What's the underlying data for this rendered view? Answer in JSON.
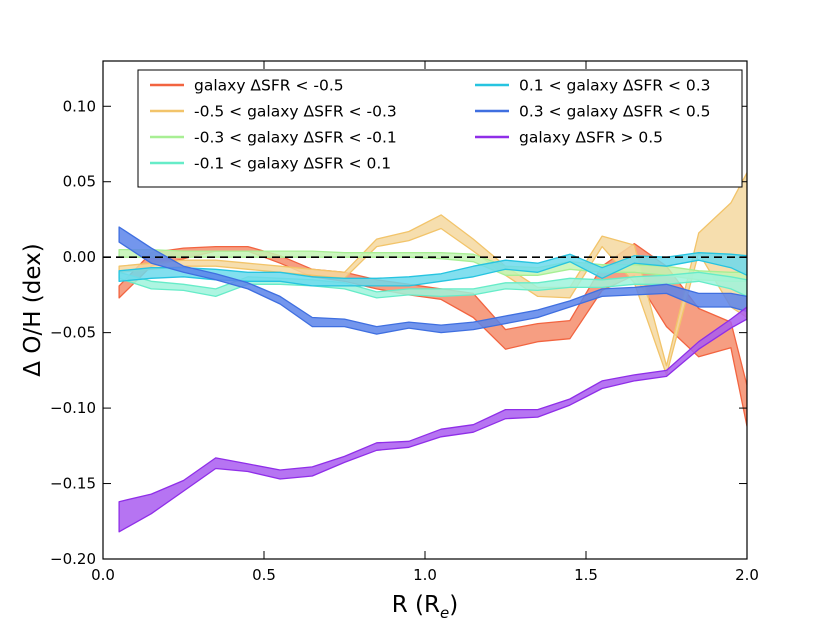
{
  "chart_data": {
    "type": "area",
    "title": "",
    "xlabel_main": "R (R",
    "xlabel_sub": "e",
    "xlabel_close": ")",
    "ylabel": "Δ O/H (dex)",
    "xlim": [
      0.0,
      2.0
    ],
    "ylim": [
      -0.2,
      0.13
    ],
    "xticks": [
      0.0,
      0.5,
      1.0,
      1.5,
      2.0
    ],
    "xtick_labels": [
      "0.0",
      "0.5",
      "1.0",
      "1.5",
      "2.0"
    ],
    "yticks": [
      -0.2,
      -0.15,
      -0.1,
      -0.05,
      0.0,
      0.05,
      0.1
    ],
    "ytick_labels": [
      "−0.20",
      "−0.15",
      "−0.10",
      "−0.05",
      "0.00",
      "0.05",
      "0.10"
    ],
    "reference_line": 0.0,
    "legend_position": "top",
    "x": [
      0.05,
      0.15,
      0.25,
      0.35,
      0.45,
      0.55,
      0.65,
      0.75,
      0.85,
      0.95,
      1.05,
      1.15,
      1.25,
      1.35,
      1.45,
      1.55,
      1.65,
      1.75,
      1.85,
      1.95,
      2.0
    ],
    "series": [
      {
        "name": "galaxy ΔSFR < -0.5",
        "color": "#f26440",
        "fill": "#f58d6c",
        "lower": [
          -0.027,
          -0.006,
          -0.001,
          0.004,
          0.004,
          -0.004,
          -0.013,
          -0.016,
          -0.021,
          -0.025,
          -0.028,
          -0.04,
          -0.061,
          -0.056,
          -0.054,
          -0.022,
          -0.012,
          -0.046,
          -0.066,
          -0.06,
          -0.112
        ],
        "upper": [
          -0.019,
          0.003,
          0.006,
          0.007,
          0.007,
          0.001,
          -0.008,
          -0.01,
          -0.015,
          -0.018,
          -0.021,
          -0.024,
          -0.048,
          -0.044,
          -0.042,
          -0.006,
          0.009,
          -0.006,
          -0.034,
          -0.043,
          -0.085
        ]
      },
      {
        "name": "-0.5 < galaxy ΔSFR < -0.3",
        "color": "#f2c46a",
        "fill": "#f5d8a0",
        "lower": [
          -0.01,
          -0.008,
          -0.006,
          -0.006,
          -0.008,
          -0.01,
          -0.012,
          -0.014,
          0.007,
          0.011,
          0.019,
          0.004,
          -0.012,
          -0.026,
          -0.027,
          0.007,
          -0.017,
          -0.078,
          0.003,
          -0.033,
          -0.04
        ],
        "upper": [
          -0.006,
          -0.004,
          -0.002,
          -0.002,
          -0.004,
          -0.006,
          -0.008,
          -0.01,
          0.012,
          0.017,
          0.028,
          0.012,
          -0.006,
          -0.02,
          -0.02,
          0.014,
          0.008,
          -0.072,
          0.016,
          0.036,
          0.056
        ]
      },
      {
        "name": "-0.3 < galaxy ΔSFR < -0.1",
        "color": "#a8ef94",
        "fill": "#c3f4b4",
        "lower": [
          0.0,
          0.0,
          0.0,
          0.0,
          0.0,
          0.0,
          0.0,
          0.0,
          0.0,
          0.0,
          -0.001,
          -0.003,
          -0.012,
          -0.012,
          -0.008,
          -0.01,
          -0.01,
          -0.012,
          -0.015,
          -0.016,
          -0.016
        ],
        "upper": [
          0.005,
          0.005,
          0.004,
          0.004,
          0.004,
          0.004,
          0.004,
          0.003,
          0.003,
          0.003,
          0.003,
          0.002,
          -0.006,
          -0.007,
          -0.003,
          -0.005,
          -0.005,
          -0.006,
          -0.009,
          -0.01,
          -0.01
        ]
      },
      {
        "name": "-0.1 < galaxy ΔSFR < 0.1",
        "color": "#66ecc8",
        "fill": "#9ff3dc",
        "lower": [
          -0.014,
          -0.021,
          -0.022,
          -0.026,
          -0.018,
          -0.018,
          -0.019,
          -0.021,
          -0.027,
          -0.025,
          -0.026,
          -0.025,
          -0.021,
          -0.022,
          -0.02,
          -0.02,
          -0.018,
          -0.018,
          -0.016,
          -0.021,
          -0.026
        ],
        "upper": [
          -0.01,
          -0.016,
          -0.018,
          -0.021,
          -0.013,
          -0.014,
          -0.015,
          -0.017,
          -0.023,
          -0.021,
          -0.021,
          -0.021,
          -0.017,
          -0.017,
          -0.014,
          -0.015,
          -0.013,
          -0.012,
          -0.01,
          -0.013,
          -0.015
        ]
      },
      {
        "name": "0.1 < galaxy ΔSFR < 0.3",
        "color": "#26c4e0",
        "fill": "#6cd9ec",
        "lower": [
          -0.016,
          -0.014,
          -0.013,
          -0.015,
          -0.016,
          -0.016,
          -0.019,
          -0.019,
          -0.019,
          -0.019,
          -0.016,
          -0.013,
          -0.008,
          -0.01,
          -0.003,
          -0.014,
          -0.004,
          -0.006,
          -0.002,
          -0.007,
          -0.012
        ],
        "upper": [
          -0.009,
          -0.007,
          -0.007,
          -0.008,
          -0.01,
          -0.01,
          -0.013,
          -0.014,
          -0.014,
          -0.013,
          -0.011,
          -0.006,
          -0.002,
          -0.004,
          0.002,
          -0.007,
          0.001,
          0.0,
          0.003,
          0.002,
          0.001
        ]
      },
      {
        "name": "0.3 < galaxy ΔSFR < 0.5",
        "color": "#3f6fe0",
        "fill": "#5b84ea",
        "lower": [
          0.01,
          -0.004,
          -0.01,
          -0.015,
          -0.021,
          -0.031,
          -0.046,
          -0.046,
          -0.051,
          -0.047,
          -0.05,
          -0.048,
          -0.044,
          -0.04,
          -0.033,
          -0.026,
          -0.025,
          -0.024,
          -0.033,
          -0.033,
          -0.036
        ],
        "upper": [
          0.02,
          0.006,
          -0.006,
          -0.011,
          -0.017,
          -0.026,
          -0.04,
          -0.041,
          -0.046,
          -0.043,
          -0.045,
          -0.043,
          -0.039,
          -0.035,
          -0.029,
          -0.021,
          -0.02,
          -0.018,
          -0.024,
          -0.024,
          -0.026
        ]
      },
      {
        "name": "galaxy ΔSFR > 0.5",
        "color": "#8f2ee8",
        "fill": "#a95cf0",
        "lower": [
          -0.182,
          -0.17,
          -0.155,
          -0.14,
          -0.142,
          -0.147,
          -0.145,
          -0.136,
          -0.128,
          -0.126,
          -0.119,
          -0.116,
          -0.107,
          -0.106,
          -0.098,
          -0.087,
          -0.082,
          -0.079,
          -0.061,
          -0.047,
          -0.041
        ],
        "upper": [
          -0.162,
          -0.157,
          -0.148,
          -0.133,
          -0.137,
          -0.141,
          -0.139,
          -0.132,
          -0.123,
          -0.122,
          -0.114,
          -0.111,
          -0.101,
          -0.101,
          -0.094,
          -0.082,
          -0.078,
          -0.075,
          -0.056,
          -0.041,
          -0.033
        ]
      }
    ],
    "legend": {
      "entries": [
        {
          "prefix": "galaxy ΔSFR",
          "op1": "<",
          "value": "-0.5",
          "color": "#f26440",
          "col": 0,
          "row": 0,
          "kind": "a"
        },
        {
          "prefix": "-0.5",
          "op1": "<",
          "middle": "galaxy ΔSFR",
          "op2": "<",
          "value": "-0.3",
          "color": "#f2c46a",
          "col": 0,
          "row": 1,
          "kind": "b"
        },
        {
          "prefix": "-0.3",
          "op1": "<",
          "middle": "galaxy ΔSFR",
          "op2": "<",
          "value": "-0.1",
          "color": "#a8ef94",
          "col": 0,
          "row": 2,
          "kind": "b"
        },
        {
          "prefix": "-0.1",
          "op1": "<",
          "middle": "galaxy ΔSFR",
          "op2": "<",
          "value": "0.1",
          "color": "#66ecc8",
          "col": 0,
          "row": 3,
          "kind": "b"
        },
        {
          "prefix": "0.1",
          "op1": "<",
          "middle": "galaxy ΔSFR",
          "op2": "<",
          "value": "0.3",
          "color": "#26c4e0",
          "col": 1,
          "row": 0,
          "kind": "b"
        },
        {
          "prefix": "0.3",
          "op1": "<",
          "middle": "galaxy ΔSFR",
          "op2": "<",
          "value": "0.5",
          "color": "#3f6fe0",
          "col": 1,
          "row": 1,
          "kind": "b"
        },
        {
          "prefix": "galaxy ΔSFR",
          "op1": ">",
          "value": "0.5",
          "color": "#8f2ee8",
          "col": 1,
          "row": 2,
          "kind": "a"
        }
      ]
    }
  }
}
